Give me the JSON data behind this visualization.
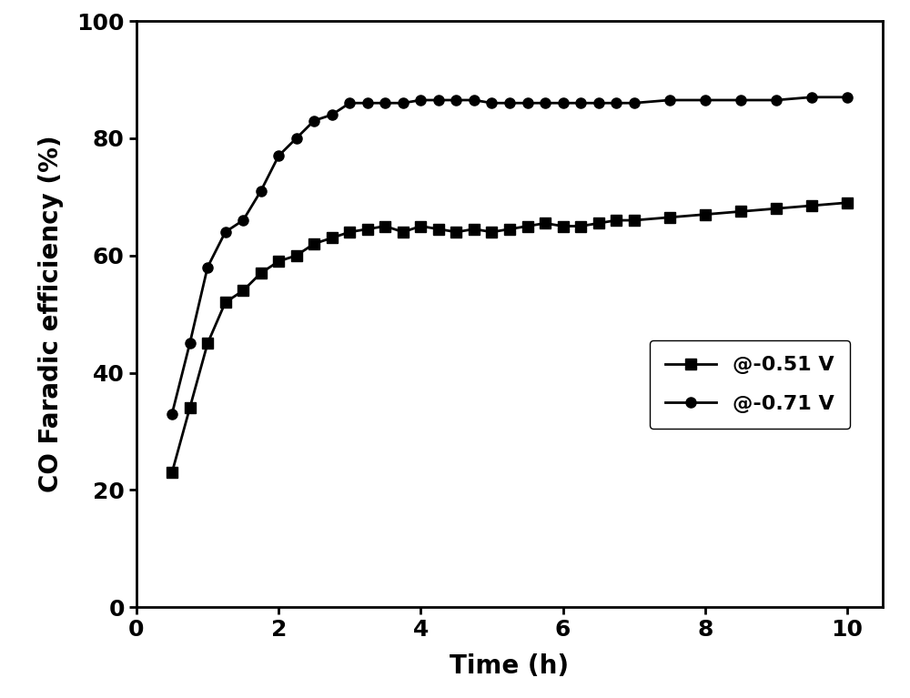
{
  "series_051_x": [
    0.5,
    0.75,
    1.0,
    1.25,
    1.5,
    1.75,
    2.0,
    2.25,
    2.5,
    2.75,
    3.0,
    3.25,
    3.5,
    3.75,
    4.0,
    4.25,
    4.5,
    4.75,
    5.0,
    5.25,
    5.5,
    5.75,
    6.0,
    6.25,
    6.5,
    6.75,
    7.0,
    7.5,
    8.0,
    8.5,
    9.0,
    9.5,
    10.0
  ],
  "series_051_y": [
    23,
    34,
    45,
    52,
    54,
    57,
    59,
    60,
    62,
    63,
    64,
    64.5,
    65,
    64,
    65,
    64.5,
    64,
    64.5,
    64,
    64.5,
    65,
    65.5,
    65,
    65,
    65.5,
    66,
    66,
    66.5,
    67,
    67.5,
    68,
    68.5,
    69
  ],
  "series_071_x": [
    0.5,
    0.75,
    1.0,
    1.25,
    1.5,
    1.75,
    2.0,
    2.25,
    2.5,
    2.75,
    3.0,
    3.25,
    3.5,
    3.75,
    4.0,
    4.25,
    4.5,
    4.75,
    5.0,
    5.25,
    5.5,
    5.75,
    6.0,
    6.25,
    6.5,
    6.75,
    7.0,
    7.5,
    8.0,
    8.5,
    9.0,
    9.5,
    10.0
  ],
  "series_071_y": [
    33,
    45,
    58,
    64,
    66,
    71,
    77,
    80,
    83,
    84,
    86,
    86,
    86,
    86,
    86.5,
    86.5,
    86.5,
    86.5,
    86,
    86,
    86,
    86,
    86,
    86,
    86,
    86,
    86,
    86.5,
    86.5,
    86.5,
    86.5,
    87,
    87
  ],
  "xlabel": "Time (h)",
  "ylabel": "CO Faradic efficiency (%)",
  "xlim": [
    0,
    10.5
  ],
  "ylim": [
    0,
    100
  ],
  "xticks": [
    0,
    2,
    4,
    6,
    8,
    10
  ],
  "yticks": [
    0,
    20,
    40,
    60,
    80,
    100
  ],
  "legend_051": "@-0.51 V",
  "legend_071": "@-0.71 V",
  "line_color": "#000000",
  "background_color": "#ffffff",
  "marker_size": 8,
  "linewidth": 2.0,
  "label_fontsize": 20,
  "tick_fontsize": 18,
  "legend_fontsize": 16
}
